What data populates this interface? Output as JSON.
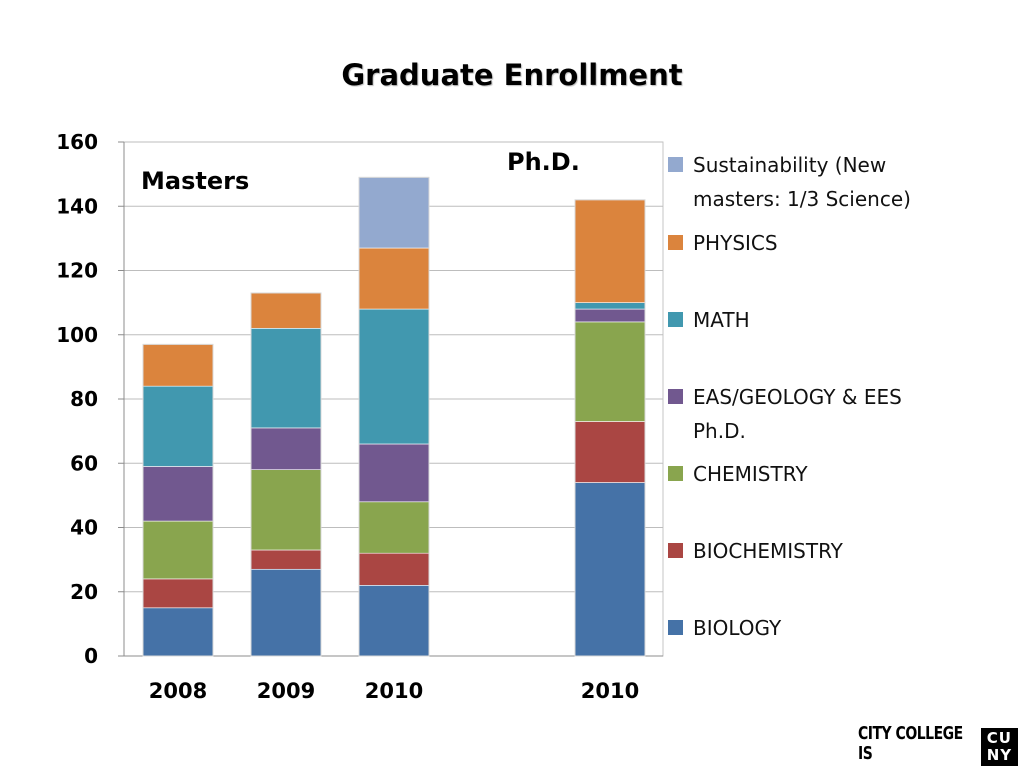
{
  "chart_data": {
    "type": "bar",
    "stacked": true,
    "title": "Graduate Enrollment",
    "categories": [
      "2008",
      "2009",
      "2010",
      "2010"
    ],
    "group_labels": [
      {
        "text": "Masters",
        "categories": [
          0,
          1,
          2
        ]
      },
      {
        "text": "Ph.D.",
        "categories": [
          3
        ]
      }
    ],
    "ylim": [
      0,
      160
    ],
    "yticks": [
      0,
      20,
      40,
      60,
      80,
      100,
      120,
      140,
      160
    ],
    "grid": true,
    "legend_position": "right",
    "series": [
      {
        "name": "BIOLOGY",
        "color": "#4572A7",
        "values": [
          15,
          27,
          22,
          54
        ]
      },
      {
        "name": "BIOCHEMISTRY",
        "color": "#AA4643",
        "values": [
          9,
          6,
          10,
          19
        ]
      },
      {
        "name": "CHEMISTRY",
        "color": "#89A54E",
        "values": [
          18,
          25,
          16,
          31
        ]
      },
      {
        "name": "EAS/GEOLOGY & EES Ph.D.",
        "color": "#71588F",
        "values": [
          17,
          13,
          18,
          4
        ]
      },
      {
        "name": "MATH",
        "color": "#4198AF",
        "values": [
          25,
          31,
          42,
          2
        ]
      },
      {
        "name": "PHYSICS",
        "color": "#DB843D",
        "values": [
          13,
          11,
          19,
          32
        ]
      },
      {
        "name": "Sustainability (New masters: 1/3 Science)",
        "color": "#93A9CF",
        "values": [
          0,
          0,
          22,
          0
        ]
      }
    ]
  },
  "footer": {
    "text": "CITY COLLEGE IS",
    "logo_top": "CU",
    "logo_bottom": "NY"
  }
}
